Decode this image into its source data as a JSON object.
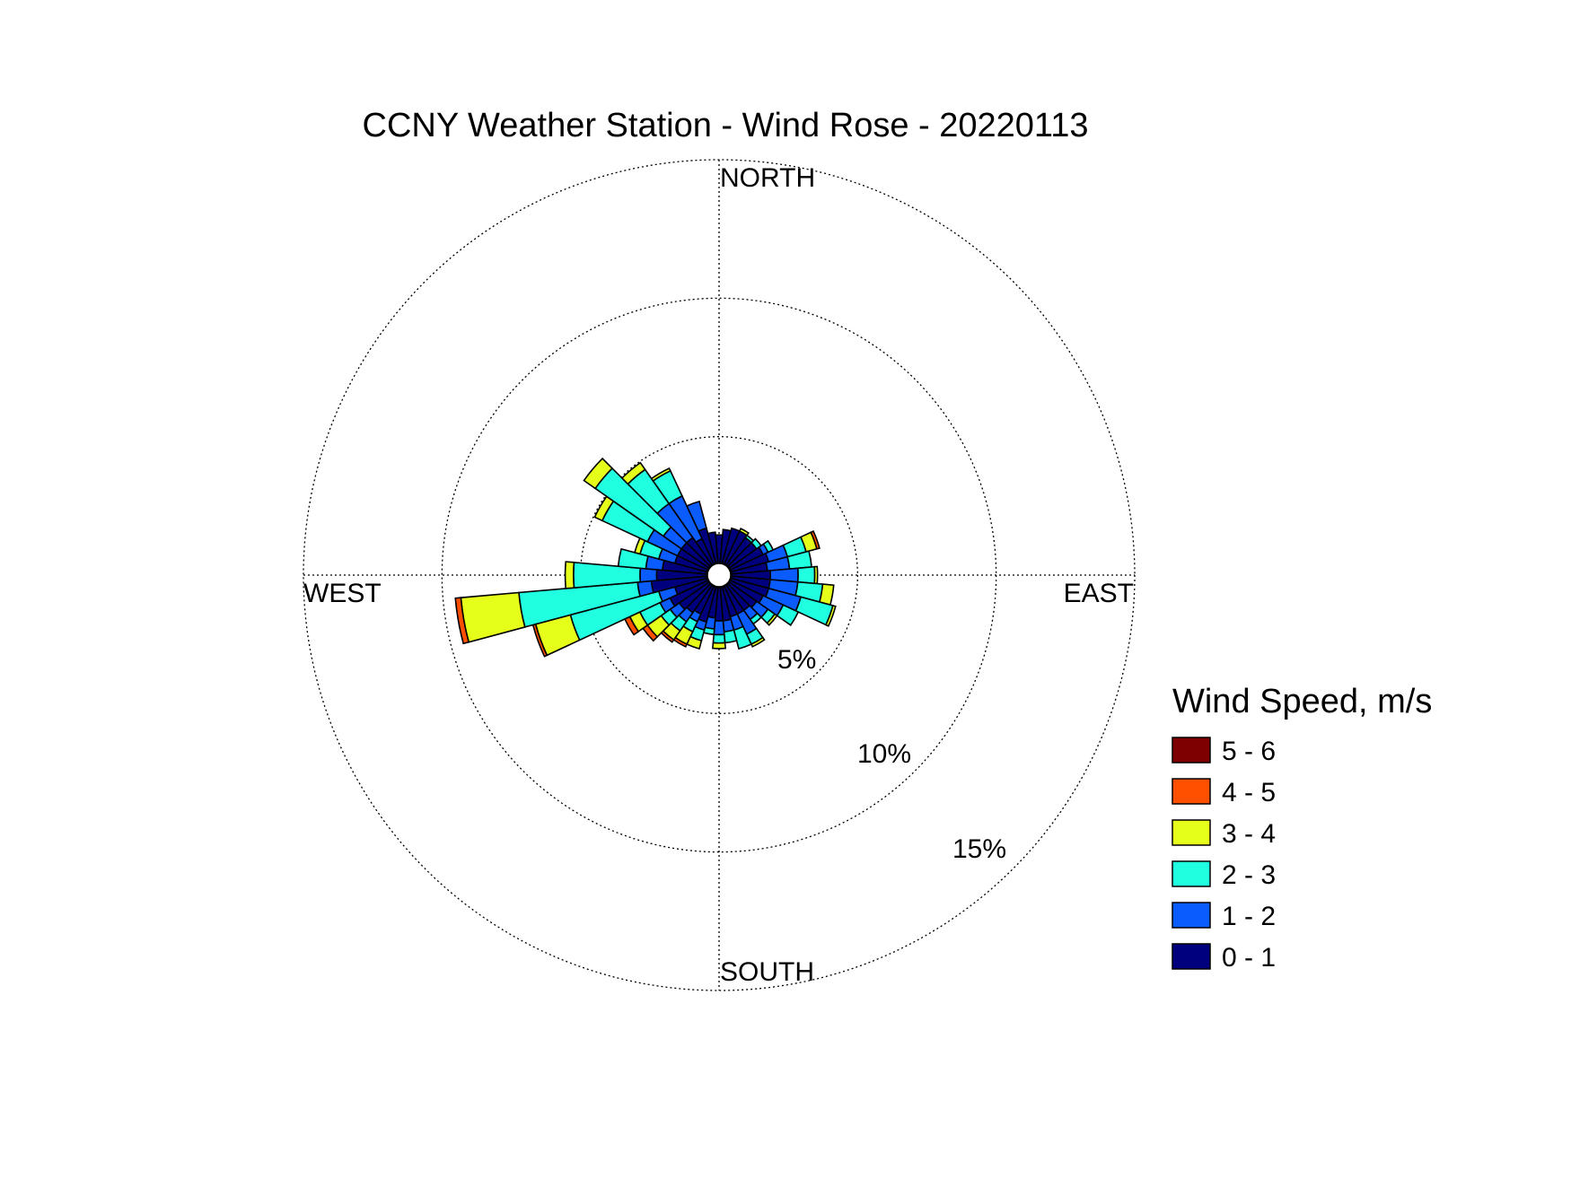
{
  "chart_data": {
    "type": "windrose",
    "title": "CCNY Weather Station - Wind Rose - 20220113",
    "directions_labels": {
      "north": "NORTH",
      "south": "SOUTH",
      "east": "EAST",
      "west": "WEST"
    },
    "radial_unit": "%",
    "radial_max": 15,
    "radial_ticks": [
      5,
      10,
      15
    ],
    "radial_tick_labels": [
      "5%",
      "10%",
      "15%"
    ],
    "legend": {
      "title": "Wind Speed, m/s",
      "placement": "right",
      "bins": [
        {
          "label": "5 - 6",
          "color": "#7f0000"
        },
        {
          "label": "4 - 5",
          "color": "#ff5000"
        },
        {
          "label": "3 - 4",
          "color": "#e6ff1a"
        },
        {
          "label": "2 - 3",
          "color": "#20ffe0"
        },
        {
          "label": "1 - 2",
          "color": "#0b5cff"
        },
        {
          "label": "0 - 1",
          "color": "#00007f"
        }
      ]
    },
    "bin_order": [
      "0 - 1",
      "1 - 2",
      "2 - 3",
      "3 - 4",
      "4 - 5",
      "5 - 6"
    ],
    "sector_width_deg": 10,
    "sectors": [
      {
        "dir": 0,
        "values": [
          1.0,
          0.0,
          0.0,
          0.0,
          0.0,
          0.0
        ]
      },
      {
        "dir": 10,
        "values": [
          1.2,
          0.0,
          0.0,
          0.0,
          0.0,
          0.0
        ]
      },
      {
        "dir": 20,
        "values": [
          1.3,
          0.0,
          0.0,
          0.0,
          0.0,
          0.0
        ]
      },
      {
        "dir": 30,
        "values": [
          1.3,
          0.0,
          0.0,
          0.1,
          0.0,
          0.0
        ]
      },
      {
        "dir": 40,
        "values": [
          1.2,
          0.0,
          0.1,
          0.0,
          0.0,
          0.0
        ]
      },
      {
        "dir": 50,
        "values": [
          1.2,
          0.0,
          0.2,
          0.0,
          0.0,
          0.0
        ]
      },
      {
        "dir": 60,
        "values": [
          1.3,
          0.2,
          0.2,
          0.0,
          0.0,
          0.0
        ]
      },
      {
        "dir": 70,
        "values": [
          1.4,
          0.7,
          0.7,
          0.4,
          0.1,
          0.0
        ]
      },
      {
        "dir": 80,
        "values": [
          1.3,
          0.8,
          0.8,
          0.0,
          0.0,
          0.0
        ]
      },
      {
        "dir": 90,
        "values": [
          1.4,
          1.0,
          0.6,
          0.1,
          0.0,
          0.0
        ]
      },
      {
        "dir": 100,
        "values": [
          1.4,
          1.0,
          0.9,
          0.4,
          0.0,
          0.0
        ]
      },
      {
        "dir": 110,
        "values": [
          1.4,
          1.2,
          1.2,
          0.1,
          0.0,
          0.0
        ]
      },
      {
        "dir": 120,
        "values": [
          1.3,
          0.8,
          0.6,
          0.0,
          0.0,
          0.0
        ]
      },
      {
        "dir": 130,
        "values": [
          1.2,
          0.5,
          0.3,
          0.1,
          0.0,
          0.0
        ]
      },
      {
        "dir": 140,
        "values": [
          1.1,
          0.4,
          0.2,
          0.0,
          0.0,
          0.0
        ]
      },
      {
        "dir": 150,
        "values": [
          1.1,
          0.8,
          0.4,
          0.1,
          0.0,
          0.0
        ]
      },
      {
        "dir": 160,
        "values": [
          1.1,
          0.5,
          0.7,
          0.0,
          0.0,
          0.0
        ]
      },
      {
        "dir": 170,
        "values": [
          1.2,
          0.4,
          0.4,
          0.0,
          0.0,
          0.0
        ]
      },
      {
        "dir": 180,
        "values": [
          1.2,
          0.5,
          0.3,
          0.2,
          0.0,
          0.0
        ]
      },
      {
        "dir": 190,
        "values": [
          1.1,
          0.4,
          0.2,
          0.0,
          0.0,
          0.0
        ]
      },
      {
        "dir": 200,
        "values": [
          1.3,
          0.3,
          0.4,
          0.3,
          0.0,
          0.0
        ]
      },
      {
        "dir": 210,
        "values": [
          1.1,
          0.3,
          0.4,
          0.5,
          0.1,
          0.0
        ]
      },
      {
        "dir": 220,
        "values": [
          1.2,
          0.4,
          0.4,
          0.4,
          0.1,
          0.0
        ]
      },
      {
        "dir": 230,
        "values": [
          1.3,
          0.4,
          0.4,
          0.6,
          0.2,
          0.0
        ]
      },
      {
        "dir": 240,
        "values": [
          1.5,
          0.4,
          0.8,
          0.4,
          0.2,
          0.0
        ]
      },
      {
        "dir": 250,
        "values": [
          1.2,
          0.6,
          3.3,
          1.3,
          0.1,
          0.0
        ]
      },
      {
        "dir": 260,
        "values": [
          2.0,
          0.5,
          4.3,
          2.1,
          0.2,
          0.0
        ]
      },
      {
        "dir": 270,
        "values": [
          1.8,
          0.6,
          2.4,
          0.3,
          0.0,
          0.0
        ]
      },
      {
        "dir": 280,
        "values": [
          1.6,
          0.6,
          1.0,
          0.0,
          0.0,
          0.0
        ]
      },
      {
        "dir": 290,
        "values": [
          1.2,
          0.6,
          0.7,
          0.2,
          0.0,
          0.0
        ]
      },
      {
        "dir": 300,
        "values": [
          1.2,
          1.2,
          1.8,
          0.3,
          0.0,
          0.0
        ]
      },
      {
        "dir": 310,
        "values": [
          1.2,
          0.8,
          3.0,
          0.5,
          0.0,
          0.0
        ]
      },
      {
        "dir": 320,
        "values": [
          1.2,
          1.5,
          1.5,
          0.3,
          0.0,
          0.0
        ]
      },
      {
        "dir": 330,
        "values": [
          1.0,
          1.7,
          1.0,
          0.1,
          0.0,
          0.0
        ]
      },
      {
        "dir": 340,
        "values": [
          1.3,
          1.0,
          0.0,
          0.0,
          0.0,
          0.0
        ]
      },
      {
        "dir": 350,
        "values": [
          1.1,
          0.0,
          0.0,
          0.0,
          0.0,
          0.0
        ]
      }
    ]
  }
}
